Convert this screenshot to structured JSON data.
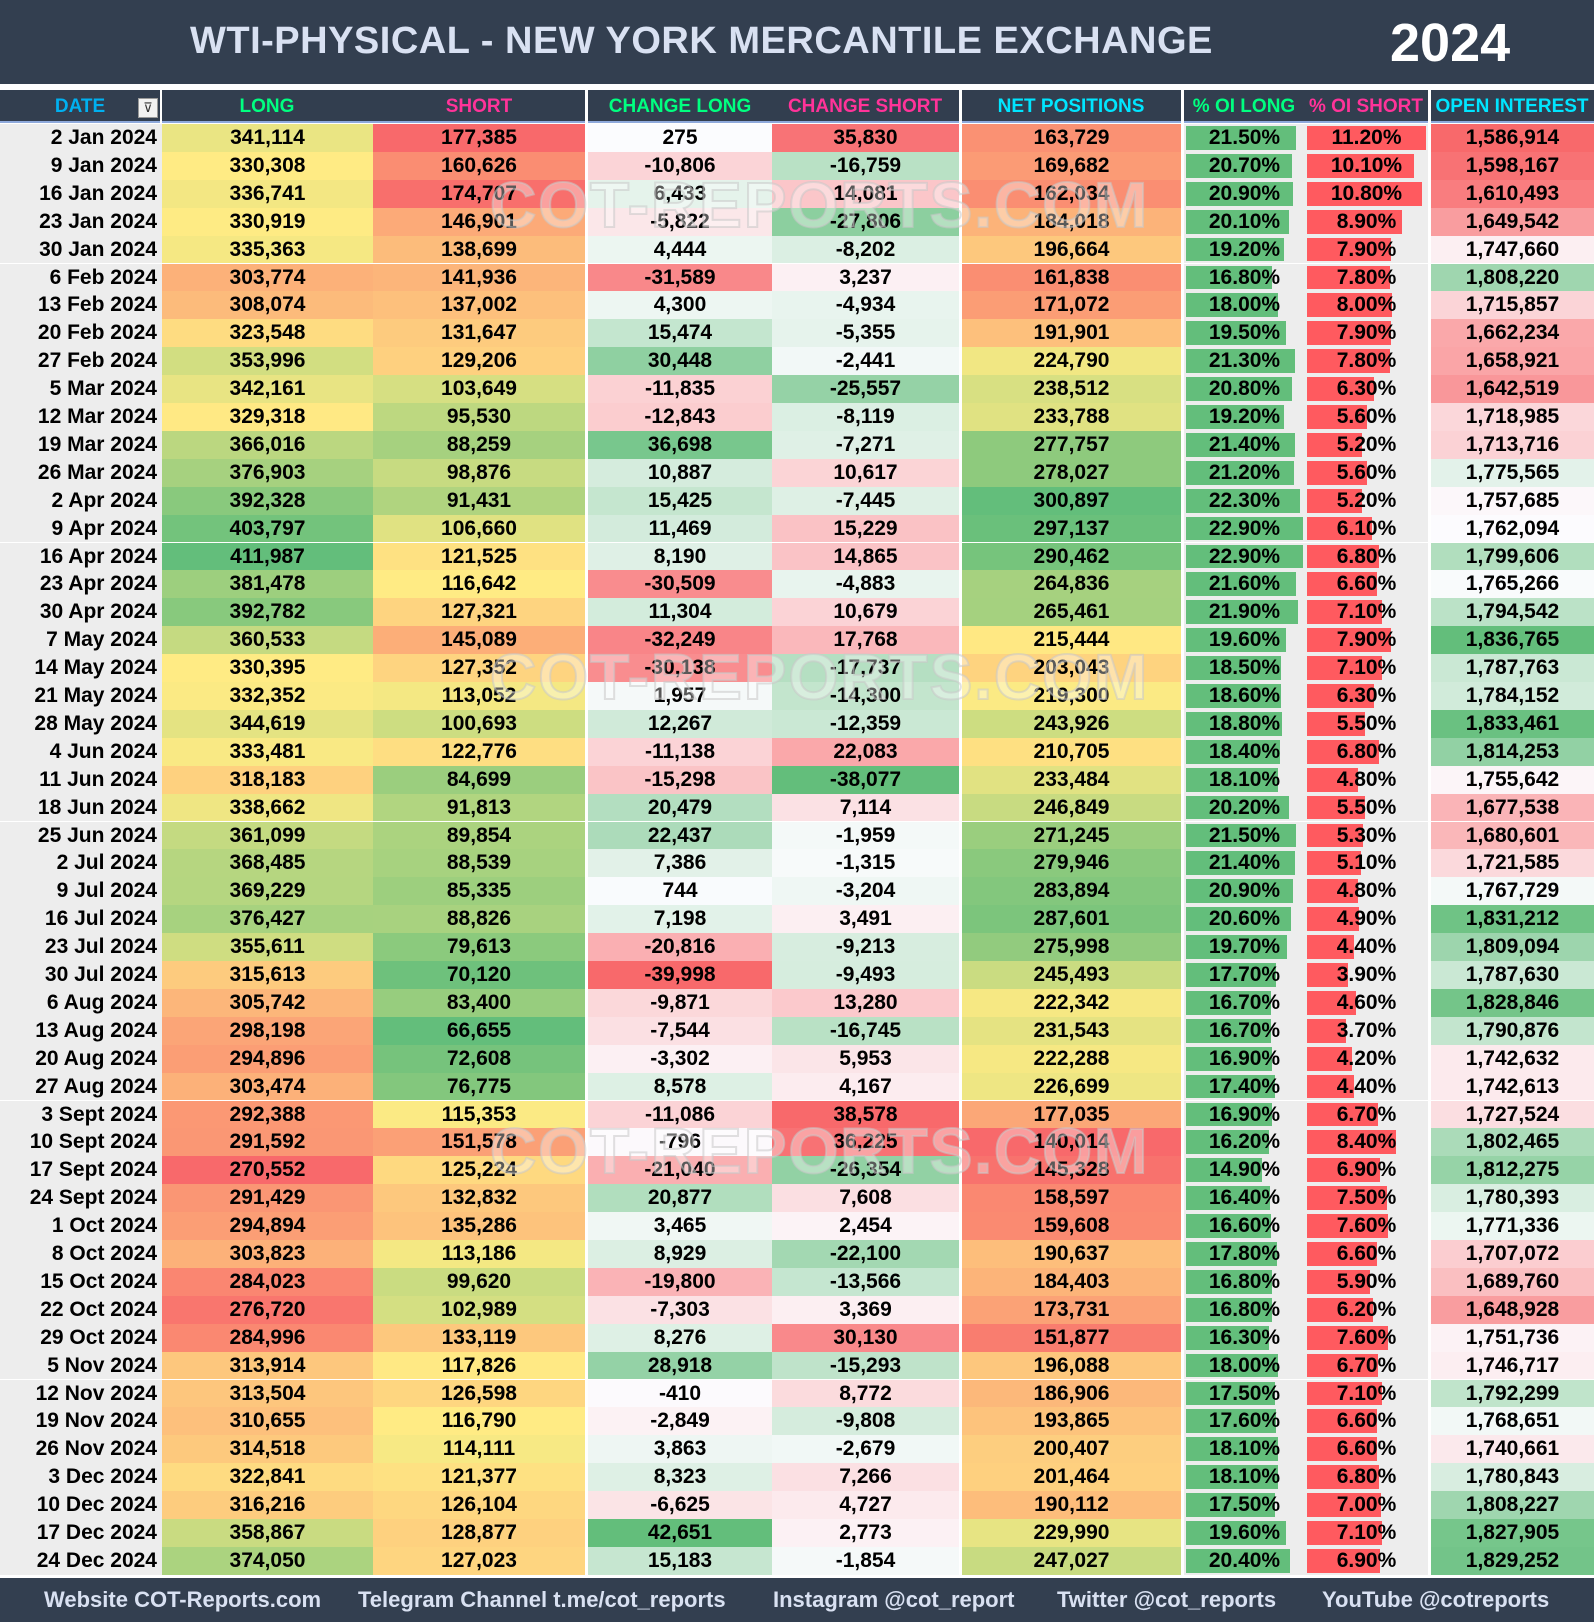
{
  "title": "WTI-PHYSICAL - NEW YORK MERCANTILE EXCHANGE",
  "year": "2024",
  "filter_icon": "filter-sort-icon",
  "columns": [
    {
      "label": "DATE",
      "color": "#00B0F0"
    },
    {
      "label": "LONG",
      "color": "#00FF80"
    },
    {
      "label": "SHORT",
      "color": "#FF3399"
    },
    {
      "label": "CHANGE LONG",
      "color": "#00FF80"
    },
    {
      "label": "CHANGE SHORT",
      "color": "#FF3399"
    },
    {
      "label": "NET POSITIONS",
      "color": "#00E5FF"
    },
    {
      "label": "% OI LONG",
      "color": "#00FF80"
    },
    {
      "label": "% OI SHORT",
      "color": "#FF3399"
    },
    {
      "label": "OPEN INTEREST",
      "color": "#00E5FF"
    }
  ],
  "scale_colors": {
    "red": "#F8696B",
    "yellow": "#FFEB84",
    "green": "#63BE7B",
    "white": "#FCFCFF",
    "bar_long": "#63BE7B",
    "bar_short": "#FF5A5F"
  },
  "rows": [
    [
      "2 Jan 2024",
      341114,
      177385,
      275,
      35830,
      163729,
      21.5,
      11.2,
      1586914
    ],
    [
      "9 Jan 2024",
      330308,
      160626,
      -10806,
      -16759,
      169682,
      20.7,
      10.1,
      1598167
    ],
    [
      "16 Jan 2024",
      336741,
      174707,
      6433,
      14081,
      162034,
      20.9,
      10.8,
      1610493
    ],
    [
      "23 Jan 2024",
      330919,
      146901,
      -5822,
      -27806,
      184018,
      20.1,
      8.9,
      1649542
    ],
    [
      "30 Jan 2024",
      335363,
      138699,
      4444,
      -8202,
      196664,
      19.2,
      7.9,
      1747660
    ],
    [
      "6 Feb 2024",
      303774,
      141936,
      -31589,
      3237,
      161838,
      16.8,
      7.8,
      1808220
    ],
    [
      "13 Feb 2024",
      308074,
      137002,
      4300,
      -4934,
      171072,
      18.0,
      8.0,
      1715857
    ],
    [
      "20 Feb 2024",
      323548,
      131647,
      15474,
      -5355,
      191901,
      19.5,
      7.9,
      1662234
    ],
    [
      "27 Feb 2024",
      353996,
      129206,
      30448,
      -2441,
      224790,
      21.3,
      7.8,
      1658921
    ],
    [
      "5 Mar 2024",
      342161,
      103649,
      -11835,
      -25557,
      238512,
      20.8,
      6.3,
      1642519
    ],
    [
      "12 Mar 2024",
      329318,
      95530,
      -12843,
      -8119,
      233788,
      19.2,
      5.6,
      1718985
    ],
    [
      "19 Mar 2024",
      366016,
      88259,
      36698,
      -7271,
      277757,
      21.4,
      5.2,
      1713716
    ],
    [
      "26 Mar 2024",
      376903,
      98876,
      10887,
      10617,
      278027,
      21.2,
      5.6,
      1775565
    ],
    [
      "2 Apr 2024",
      392328,
      91431,
      15425,
      -7445,
      300897,
      22.3,
      5.2,
      1757685
    ],
    [
      "9 Apr 2024",
      403797,
      106660,
      11469,
      15229,
      297137,
      22.9,
      6.1,
      1762094
    ],
    [
      "16 Apr 2024",
      411987,
      121525,
      8190,
      14865,
      290462,
      22.9,
      6.8,
      1799606
    ],
    [
      "23 Apr 2024",
      381478,
      116642,
      -30509,
      -4883,
      264836,
      21.6,
      6.6,
      1765266
    ],
    [
      "30 Apr 2024",
      392782,
      127321,
      11304,
      10679,
      265461,
      21.9,
      7.1,
      1794542
    ],
    [
      "7 May 2024",
      360533,
      145089,
      -32249,
      17768,
      215444,
      19.6,
      7.9,
      1836765
    ],
    [
      "14 May 2024",
      330395,
      127352,
      -30138,
      -17737,
      203043,
      18.5,
      7.1,
      1787763
    ],
    [
      "21 May 2024",
      332352,
      113052,
      1957,
      -14300,
      219300,
      18.6,
      6.3,
      1784152
    ],
    [
      "28 May 2024",
      344619,
      100693,
      12267,
      -12359,
      243926,
      18.8,
      5.5,
      1833461
    ],
    [
      "4 Jun 2024",
      333481,
      122776,
      -11138,
      22083,
      210705,
      18.4,
      6.8,
      1814253
    ],
    [
      "11 Jun 2024",
      318183,
      84699,
      -15298,
      -38077,
      233484,
      18.1,
      4.8,
      1755642
    ],
    [
      "18 Jun 2024",
      338662,
      91813,
      20479,
      7114,
      246849,
      20.2,
      5.5,
      1677538
    ],
    [
      "25 Jun 2024",
      361099,
      89854,
      22437,
      -1959,
      271245,
      21.5,
      5.3,
      1680601
    ],
    [
      "2 Jul 2024",
      368485,
      88539,
      7386,
      -1315,
      279946,
      21.4,
      5.1,
      1721585
    ],
    [
      "9 Jul 2024",
      369229,
      85335,
      744,
      -3204,
      283894,
      20.9,
      4.8,
      1767729
    ],
    [
      "16 Jul 2024",
      376427,
      88826,
      7198,
      3491,
      287601,
      20.6,
      4.9,
      1831212
    ],
    [
      "23 Jul 2024",
      355611,
      79613,
      -20816,
      -9213,
      275998,
      19.7,
      4.4,
      1809094
    ],
    [
      "30 Jul 2024",
      315613,
      70120,
      -39998,
      -9493,
      245493,
      17.7,
      3.9,
      1787630
    ],
    [
      "6 Aug 2024",
      305742,
      83400,
      -9871,
      13280,
      222342,
      16.7,
      4.6,
      1828846
    ],
    [
      "13 Aug 2024",
      298198,
      66655,
      -7544,
      -16745,
      231543,
      16.7,
      3.7,
      1790876
    ],
    [
      "20 Aug 2024",
      294896,
      72608,
      -3302,
      5953,
      222288,
      16.9,
      4.2,
      1742632
    ],
    [
      "27 Aug 2024",
      303474,
      76775,
      8578,
      4167,
      226699,
      17.4,
      4.4,
      1742613
    ],
    [
      "3 Sept 2024",
      292388,
      115353,
      -11086,
      38578,
      177035,
      16.9,
      6.7,
      1727524
    ],
    [
      "10 Sept 2024",
      291592,
      151578,
      -796,
      36225,
      140014,
      16.2,
      8.4,
      1802465
    ],
    [
      "17 Sept 2024",
      270552,
      125224,
      -21040,
      -26354,
      145328,
      14.9,
      6.9,
      1812275
    ],
    [
      "24 Sept 2024",
      291429,
      132832,
      20877,
      7608,
      158597,
      16.4,
      7.5,
      1780393
    ],
    [
      "1 Oct 2024",
      294894,
      135286,
      3465,
      2454,
      159608,
      16.6,
      7.6,
      1771336
    ],
    [
      "8 Oct 2024",
      303823,
      113186,
      8929,
      -22100,
      190637,
      17.8,
      6.6,
      1707072
    ],
    [
      "15 Oct 2024",
      284023,
      99620,
      -19800,
      -13566,
      184403,
      16.8,
      5.9,
      1689760
    ],
    [
      "22 Oct 2024",
      276720,
      102989,
      -7303,
      3369,
      173731,
      16.8,
      6.2,
      1648928
    ],
    [
      "29 Oct 2024",
      284996,
      133119,
      8276,
      30130,
      151877,
      16.3,
      7.6,
      1751736
    ],
    [
      "5 Nov 2024",
      313914,
      117826,
      28918,
      -15293,
      196088,
      18.0,
      6.7,
      1746717
    ],
    [
      "12 Nov 2024",
      313504,
      126598,
      -410,
      8772,
      186906,
      17.5,
      7.1,
      1792299
    ],
    [
      "19 Nov 2024",
      310655,
      116790,
      -2849,
      -9808,
      193865,
      17.6,
      6.6,
      1768651
    ],
    [
      "26 Nov 2024",
      314518,
      114111,
      3863,
      -2679,
      200407,
      18.1,
      6.6,
      1740661
    ],
    [
      "3 Dec 2024",
      322841,
      121377,
      8323,
      7266,
      201464,
      18.1,
      6.8,
      1780843
    ],
    [
      "10 Dec 2024",
      316216,
      126104,
      -6625,
      4727,
      190112,
      17.5,
      7.0,
      1808227
    ],
    [
      "17 Dec 2024",
      358867,
      128877,
      42651,
      2773,
      229990,
      19.6,
      7.1,
      1827905
    ],
    [
      "24 Dec 2024",
      374050,
      127023,
      15183,
      -1854,
      247027,
      20.4,
      6.9,
      1829252
    ]
  ],
  "watermark": "COT-REPORTS.COM",
  "footer": {
    "website": "Website COT-Reports.com",
    "telegram": "Telegram Channel t.me/cot_reports",
    "instagram": "Instagram @cot_report",
    "twitter": "Twitter @cot_reports",
    "youtube": "YouTube @cotreports"
  }
}
